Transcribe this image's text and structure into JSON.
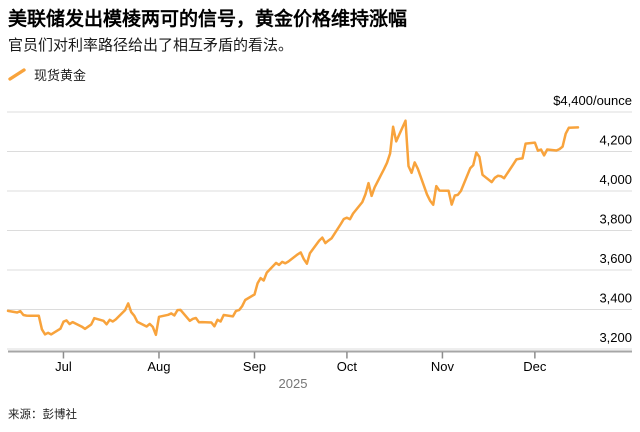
{
  "header": {
    "title": "美联储发出模棱两可的信号，黄金价格维持涨幅",
    "subtitle": "官员们对利率路径给出了相互矛盾的看法。"
  },
  "legend": {
    "label": "现货黄金",
    "color": "#F8A33C"
  },
  "footer": {
    "source": "来源：彭博社"
  },
  "chart_data": {
    "type": "line",
    "title": "现货黄金",
    "year": "2025",
    "grid": true,
    "legend_position": "top-left",
    "y_axis": {
      "min": 3200,
      "max": 4400,
      "unit": "$/ounce",
      "ticks": [
        {
          "value": 4400,
          "label": "$4,400/ounce"
        },
        {
          "value": 4200,
          "label": "4,200"
        },
        {
          "value": 4000,
          "label": "4,000"
        },
        {
          "value": 3800,
          "label": "3,800"
        },
        {
          "value": 3600,
          "label": "3,600"
        },
        {
          "value": 3400,
          "label": "3,400"
        },
        {
          "value": 3200,
          "label": "3,200"
        }
      ]
    },
    "x_axis": {
      "months": [
        "Jul",
        "Aug",
        "Sep",
        "Oct",
        "Nov",
        "Dec"
      ],
      "year_label": "2025",
      "range": [
        "Jun 13",
        "Dec 15"
      ]
    },
    "series": [
      {
        "name": "现货黄金",
        "color": "#F8A33C",
        "points": [
          [
            "Jun 13",
            3393
          ],
          [
            "Jun 16",
            3385
          ],
          [
            "Jun 17",
            3392
          ],
          [
            "Jun 18",
            3372
          ],
          [
            "Jun 19",
            3369
          ],
          [
            "Jun 20",
            3368
          ],
          [
            "Jun 23",
            3368
          ],
          [
            "Jun 24",
            3300
          ],
          [
            "Jun 25",
            3274
          ],
          [
            "Jun 26",
            3282
          ],
          [
            "Jun 27",
            3274
          ],
          [
            "Jun 30",
            3303
          ],
          [
            "Jul 1",
            3338
          ],
          [
            "Jul 2",
            3345
          ],
          [
            "Jul 3",
            3326
          ],
          [
            "Jul 4",
            3336
          ],
          [
            "Jul 7",
            3313
          ],
          [
            "Jul 8",
            3302
          ],
          [
            "Jul 9",
            3313
          ],
          [
            "Jul 10",
            3324
          ],
          [
            "Jul 11",
            3356
          ],
          [
            "Jul 14",
            3343
          ],
          [
            "Jul 15",
            3325
          ],
          [
            "Jul 16",
            3348
          ],
          [
            "Jul 17",
            3339
          ],
          [
            "Jul 18",
            3350
          ],
          [
            "Jul 21",
            3397
          ],
          [
            "Jul 22",
            3431
          ],
          [
            "Jul 23",
            3387
          ],
          [
            "Jul 24",
            3368
          ],
          [
            "Jul 25",
            3337
          ],
          [
            "Jul 28",
            3314
          ],
          [
            "Jul 29",
            3327
          ],
          [
            "Jul 30",
            3312
          ],
          [
            "Jul 31",
            3272
          ],
          [
            "Aug 1",
            3363
          ],
          [
            "Aug 4",
            3373
          ],
          [
            "Aug 5",
            3380
          ],
          [
            "Aug 6",
            3370
          ],
          [
            "Aug 7",
            3397
          ],
          [
            "Aug 8",
            3398
          ],
          [
            "Aug 11",
            3343
          ],
          [
            "Aug 12",
            3353
          ],
          [
            "Aug 13",
            3357
          ],
          [
            "Aug 14",
            3335
          ],
          [
            "Aug 15",
            3336
          ],
          [
            "Aug 18",
            3334
          ],
          [
            "Aug 19",
            3315
          ],
          [
            "Aug 20",
            3348
          ],
          [
            "Aug 21",
            3339
          ],
          [
            "Aug 22",
            3372
          ],
          [
            "Aug 25",
            3365
          ],
          [
            "Aug 26",
            3393
          ],
          [
            "Aug 27",
            3397
          ],
          [
            "Aug 28",
            3417
          ],
          [
            "Aug 29",
            3448
          ],
          [
            "Sep 1",
            3476
          ],
          [
            "Sep 2",
            3533
          ],
          [
            "Sep 3",
            3559
          ],
          [
            "Sep 4",
            3547
          ],
          [
            "Sep 5",
            3587
          ],
          [
            "Sep 8",
            3636
          ],
          [
            "Sep 9",
            3626
          ],
          [
            "Sep 10",
            3641
          ],
          [
            "Sep 11",
            3634
          ],
          [
            "Sep 12",
            3643
          ],
          [
            "Sep 15",
            3679
          ],
          [
            "Sep 16",
            3689
          ],
          [
            "Sep 17",
            3655
          ],
          [
            "Sep 18",
            3632
          ],
          [
            "Sep 19",
            3685
          ],
          [
            "Sep 22",
            3749
          ],
          [
            "Sep 23",
            3764
          ],
          [
            "Sep 24",
            3736
          ],
          [
            "Sep 25",
            3749
          ],
          [
            "Sep 26",
            3760
          ],
          [
            "Sep 29",
            3833
          ],
          [
            "Sep 30",
            3858
          ],
          [
            "Oct 1",
            3865
          ],
          [
            "Oct 2",
            3857
          ],
          [
            "Oct 3",
            3886
          ],
          [
            "Oct 6",
            3944
          ],
          [
            "Oct 7",
            3983
          ],
          [
            "Oct 8",
            4040
          ],
          [
            "Oct 9",
            3975
          ],
          [
            "Oct 10",
            4018
          ],
          [
            "Oct 13",
            4110
          ],
          [
            "Oct 14",
            4143
          ],
          [
            "Oct 15",
            4190
          ],
          [
            "Oct 16",
            4325
          ],
          [
            "Oct 17",
            4251
          ],
          [
            "Oct 20",
            4356
          ],
          [
            "Oct 21",
            4126
          ],
          [
            "Oct 22",
            4092
          ],
          [
            "Oct 23",
            4145
          ],
          [
            "Oct 24",
            4113
          ],
          [
            "Oct 27",
            3983
          ],
          [
            "Oct 28",
            3951
          ],
          [
            "Oct 29",
            3930
          ],
          [
            "Oct 30",
            4025
          ],
          [
            "Oct 31",
            4002
          ],
          [
            "Nov 3",
            4001
          ],
          [
            "Nov 4",
            3931
          ],
          [
            "Nov 5",
            3977
          ],
          [
            "Nov 6",
            3980
          ],
          [
            "Nov 7",
            4000
          ],
          [
            "Nov 10",
            4115
          ],
          [
            "Nov 11",
            4130
          ],
          [
            "Nov 12",
            4195
          ],
          [
            "Nov 13",
            4173
          ],
          [
            "Nov 14",
            4082
          ],
          [
            "Nov 17",
            4045
          ],
          [
            "Nov 18",
            4067
          ],
          [
            "Nov 19",
            4077
          ],
          [
            "Nov 20",
            4075
          ],
          [
            "Nov 21",
            4065
          ],
          [
            "Nov 24",
            4135
          ],
          [
            "Nov 25",
            4160
          ],
          [
            "Nov 26",
            4163
          ],
          [
            "Nov 27",
            4165
          ],
          [
            "Nov 28",
            4240
          ],
          [
            "Dec 1",
            4245
          ],
          [
            "Dec 2",
            4204
          ],
          [
            "Dec 3",
            4210
          ],
          [
            "Dec 4",
            4180
          ],
          [
            "Dec 5",
            4210
          ],
          [
            "Dec 8",
            4205
          ],
          [
            "Dec 9",
            4212
          ],
          [
            "Dec 10",
            4225
          ],
          [
            "Dec 11",
            4290
          ],
          [
            "Dec 12",
            4320
          ],
          [
            "Dec 15",
            4322
          ]
        ]
      }
    ]
  }
}
